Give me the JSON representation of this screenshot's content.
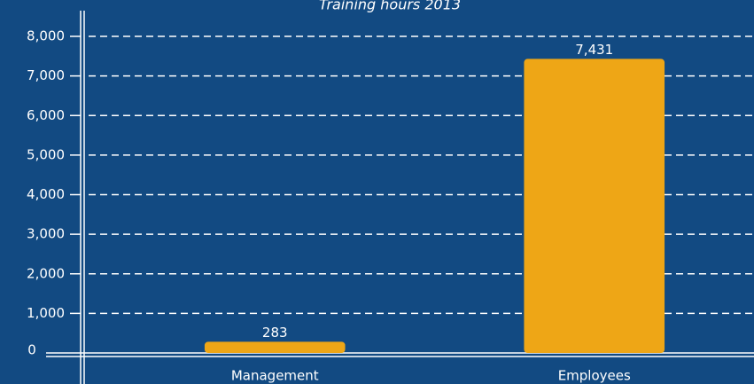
{
  "chart_data": {
    "type": "bar",
    "title": "Training hours 2013",
    "categories": [
      "Management",
      "Employees"
    ],
    "values": [
      283,
      7431
    ],
    "value_labels": [
      "283",
      "7,431"
    ],
    "color": "#eea616",
    "ylim": [
      0,
      8000
    ],
    "yticks": [
      0,
      {
        "value": 1000,
        "label": "1,000"
      },
      {
        "value": 2000,
        "label": "2,000"
      },
      {
        "value": 3000,
        "label": "3,000"
      },
      {
        "value": 4000,
        "label": "4,000"
      },
      {
        "value": 5000,
        "label": "5,000"
      },
      {
        "value": 6000,
        "label": "6,000"
      },
      {
        "value": 7000,
        "label": "7,000"
      },
      {
        "value": 8000,
        "label": "8,000"
      }
    ],
    "grid": true
  }
}
